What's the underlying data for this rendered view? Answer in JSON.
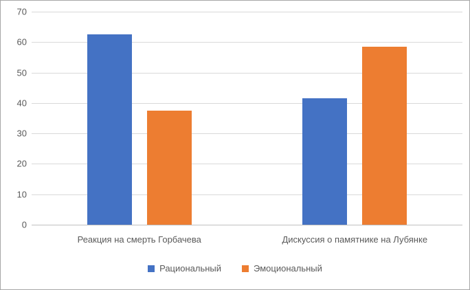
{
  "chart_data": {
    "type": "bar",
    "title": "",
    "xlabel": "",
    "ylabel": "",
    "categories": [
      "Реакция на смерть Горбачева",
      "Дискуссия о памятнике на Лубянке"
    ],
    "series": [
      {
        "name": "Рациональный",
        "color": "#4472c4",
        "values": [
          62.5,
          41.5
        ]
      },
      {
        "name": "Эмоциональный",
        "color": "#ed7d31",
        "values": [
          37.5,
          58.5
        ]
      }
    ],
    "ylim": [
      0,
      70
    ],
    "yticks": [
      0,
      10,
      20,
      30,
      40,
      50,
      60,
      70
    ],
    "grid": true,
    "legend_position": "bottom"
  },
  "colors": {
    "background": "#ffffff",
    "frame_border": "#a6a6a6",
    "gridline": "#d9d9d9",
    "axis_line": "#bfbfbf",
    "text": "#595959",
    "series1": "#4472c4",
    "series2": "#ed7d31"
  }
}
